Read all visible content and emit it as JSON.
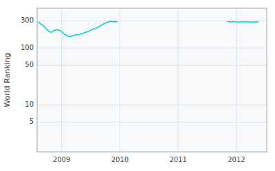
{
  "chart_data": {
    "type": "line",
    "ylabel": "World Ranking",
    "log": "y",
    "grid": true,
    "xlim": [
      2008.58,
      2012.52
    ],
    "xticks": [
      2009,
      2010,
      2011,
      2012
    ],
    "ylim": [
      1.5,
      500
    ],
    "yticks": [
      5,
      10,
      50,
      100,
      300
    ],
    "series": [
      {
        "color": "#00d4c8",
        "x": [
          2008.6,
          2008.62,
          2008.64,
          2008.66,
          2008.68,
          2008.7,
          2008.72,
          2008.74,
          2008.76,
          2008.78,
          2008.8,
          2008.82,
          2008.84,
          2008.86,
          2008.88,
          2008.9,
          2008.92,
          2008.94,
          2008.96,
          2008.98,
          2009.0,
          2009.02,
          2009.04,
          2009.06,
          2009.08,
          2009.1,
          2009.12,
          2009.14,
          2009.16,
          2009.18,
          2009.2,
          2009.22,
          2009.24,
          2009.26,
          2009.28,
          2009.3,
          2009.32,
          2009.34,
          2009.36,
          2009.38,
          2009.4,
          2009.42,
          2009.44,
          2009.46,
          2009.48,
          2009.5,
          2009.52,
          2009.54,
          2009.56,
          2009.58,
          2009.6,
          2009.62,
          2009.64,
          2009.66,
          2009.68,
          2009.7,
          2009.72,
          2009.74,
          2009.76,
          2009.78,
          2009.8,
          2009.82,
          2009.84,
          2009.86,
          2009.88,
          2009.9,
          2009.92,
          2009.94,
          2009.96
        ],
        "values": [
          290,
          275,
          265,
          258,
          248,
          240,
          228,
          215,
          205,
          198,
          192,
          188,
          195,
          200,
          205,
          208,
          210,
          208,
          205,
          200,
          195,
          185,
          178,
          172,
          168,
          163,
          160,
          158,
          160,
          163,
          165,
          168,
          170,
          172,
          170,
          172,
          175,
          178,
          180,
          183,
          186,
          190,
          193,
          196,
          200,
          205,
          210,
          215,
          218,
          220,
          225,
          230,
          238,
          243,
          250,
          258,
          265,
          272,
          278,
          283,
          288,
          292,
          295,
          293,
          290,
          292,
          290,
          292,
          290
        ]
      },
      {
        "color": "#00d4c8",
        "x": [
          2011.84,
          2011.87,
          2011.9,
          2011.93,
          2011.96,
          2011.99,
          2012.02,
          2012.05,
          2012.08,
          2012.11,
          2012.14,
          2012.17,
          2012.2,
          2012.23,
          2012.26,
          2012.29,
          2012.32,
          2012.35,
          2012.38
        ],
        "values": [
          290,
          290,
          288,
          290,
          290,
          288,
          286,
          288,
          287,
          288,
          288,
          287,
          288,
          287,
          286,
          287,
          288,
          287,
          288
        ]
      }
    ]
  }
}
